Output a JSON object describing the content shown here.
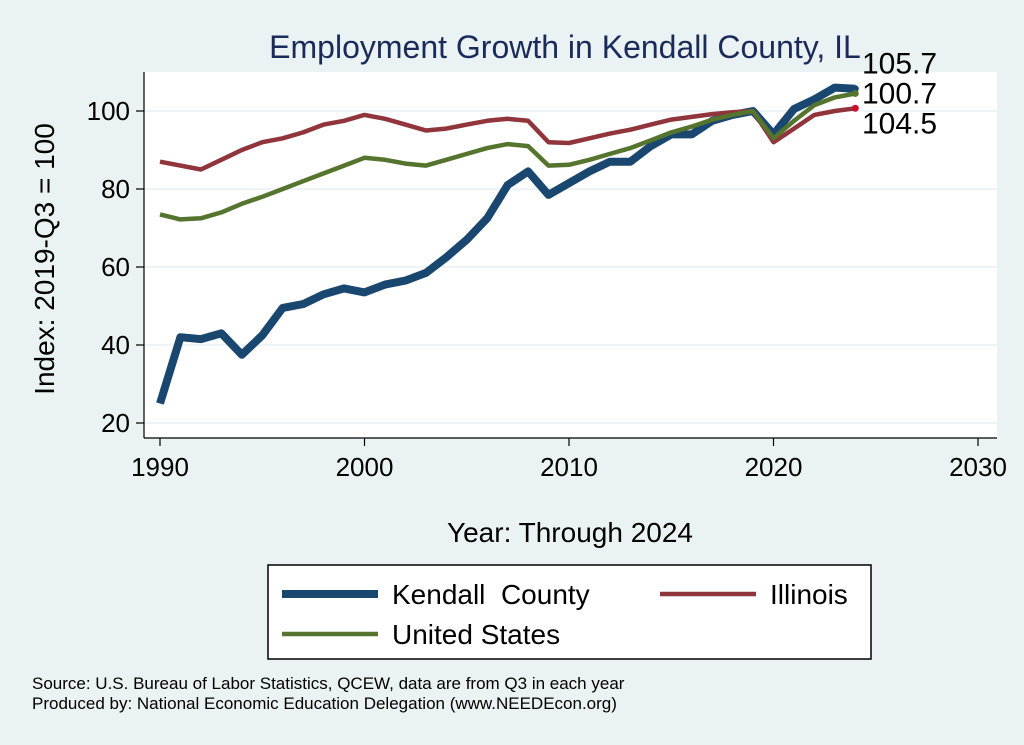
{
  "chart_data": {
    "type": "line",
    "title": "Employment Growth in Kendall County, IL",
    "xlabel": "Year: Through 2024",
    "ylabel": "Index: 2019-Q3 = 100",
    "xlim": [
      1990,
      2030
    ],
    "ylim": [
      20,
      110
    ],
    "xticks": [
      1990,
      2000,
      2010,
      2020,
      2030
    ],
    "yticks": [
      20,
      40,
      60,
      80,
      100
    ],
    "grid": true,
    "legend_position": "bottom",
    "x": [
      1990,
      1991,
      1992,
      1993,
      1994,
      1995,
      1996,
      1997,
      1998,
      1999,
      2000,
      2001,
      2002,
      2003,
      2004,
      2005,
      2006,
      2007,
      2008,
      2009,
      2010,
      2011,
      2012,
      2013,
      2014,
      2015,
      2016,
      2017,
      2018,
      2019,
      2020,
      2021,
      2022,
      2023,
      2024
    ],
    "series": [
      {
        "name": "Kendall  County",
        "color": "#1a476f",
        "values": [
          25,
          42,
          41.5,
          43,
          37.5,
          42.5,
          49.5,
          50.5,
          53,
          54.5,
          53.5,
          55.5,
          56.5,
          58.5,
          62.5,
          67,
          72.5,
          81,
          84.5,
          78.5,
          81.5,
          84.5,
          87,
          87,
          91,
          94,
          94,
          97.5,
          99,
          100,
          94,
          100.5,
          103,
          106,
          105.7
        ],
        "end_label": "105.7"
      },
      {
        "name": "Illinois",
        "color": "#90353b",
        "values": [
          87,
          86,
          85,
          87.5,
          90,
          92,
          93,
          94.5,
          96.5,
          97.5,
          99,
          98,
          96.5,
          95,
          95.5,
          96.5,
          97.5,
          98,
          97.5,
          92,
          91.8,
          93,
          94.2,
          95.2,
          96.5,
          97.8,
          98.5,
          99.2,
          99.7,
          100,
          92,
          95.5,
          99,
          100,
          100.7
        ],
        "end_label": "100.7"
      },
      {
        "name": "United States",
        "color": "#55752f",
        "values": [
          73.5,
          72.2,
          72.5,
          74,
          76.2,
          78,
          80,
          82,
          84,
          86,
          88,
          87.5,
          86.5,
          86,
          87.5,
          89,
          90.5,
          91.5,
          91,
          86,
          86.2,
          87.5,
          89,
          90.5,
          92.5,
          94.5,
          96,
          97.8,
          99,
          100,
          93,
          97.5,
          101.5,
          103.5,
          104.5
        ],
        "end_label": "104.5"
      }
    ],
    "legend_order": [
      0,
      1,
      2
    ]
  },
  "source_lines": [
    "Source: U.S. Bureau of Labor Statistics, QCEW, data are from Q3 in each year",
    "Produced by: National Economic Education Delegation (www.NEEDEcon.org)"
  ]
}
